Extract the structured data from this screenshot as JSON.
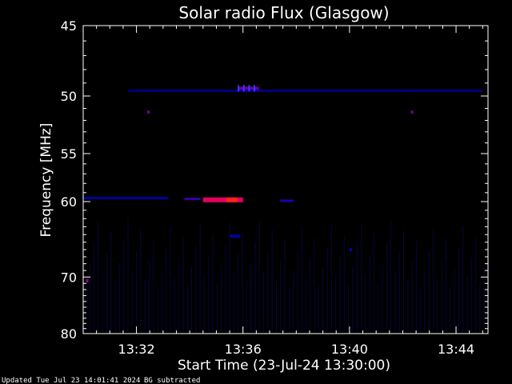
{
  "chart_data": {
    "type": "heatmap",
    "title": "Solar radio Flux (Glasgow)",
    "xlabel": "Start Time (23-Jul-24 13:30:00)",
    "ylabel": "Frequency [MHz]",
    "x_ticks": [
      "13:32",
      "13:36",
      "13:40",
      "13:44"
    ],
    "x_tick_minutes": [
      2,
      6,
      10,
      14
    ],
    "xlim_minutes": [
      0,
      15.2
    ],
    "y_ticks": [
      45,
      50,
      55,
      60,
      70,
      80
    ],
    "ylim": [
      45,
      80
    ],
    "y_scale": "reciprocal",
    "colors": {
      "background": "#000000",
      "axes": "#ffffff",
      "low": "#0000ff",
      "high": "#ff0000"
    },
    "features": [
      {
        "kind": "band",
        "freq": 59.6,
        "t_start": 0.0,
        "t_end": 3.2,
        "level": 0.3
      },
      {
        "kind": "band",
        "freq": 59.7,
        "t_start": 3.8,
        "t_end": 4.4,
        "level": 0.5
      },
      {
        "kind": "burst",
        "freq": 59.8,
        "t_start": 4.5,
        "t_end": 6.0,
        "level": 0.85
      },
      {
        "kind": "band",
        "freq": 59.9,
        "t_start": 7.4,
        "t_end": 7.9,
        "level": 0.45
      },
      {
        "kind": "band",
        "freq": 49.6,
        "t_start": 1.7,
        "t_end": 15.0,
        "level": 0.2
      },
      {
        "kind": "spot",
        "freq": 49.4,
        "t_start": 5.8,
        "t_end": 6.6,
        "level": 0.6
      },
      {
        "kind": "spot",
        "freq": 51.3,
        "t_start": 2.4,
        "t_end": 2.5,
        "level": 0.6
      },
      {
        "kind": "spot",
        "freq": 51.3,
        "t_start": 12.3,
        "t_end": 12.4,
        "level": 0.6
      },
      {
        "kind": "spot",
        "freq": 70.6,
        "t_start": 0.1,
        "t_end": 0.2,
        "level": 0.7
      },
      {
        "kind": "spot",
        "freq": 66.0,
        "t_start": 10.0,
        "t_end": 10.1,
        "level": 0.4
      },
      {
        "kind": "spot",
        "freq": 64.2,
        "t_start": 5.5,
        "t_end": 5.9,
        "level": 0.35
      }
    ]
  },
  "footer": {
    "updated": "Updated Tue Jul 23 14:01:41 2024",
    "bg_note": "BG subtracted"
  }
}
